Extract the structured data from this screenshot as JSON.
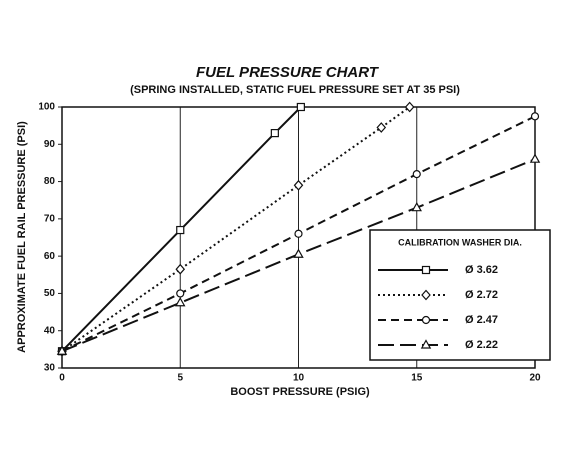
{
  "chart_data": {
    "type": "line",
    "title": "FUEL PRESSURE CHART",
    "subtitle": "(SPRING INSTALLED, STATIC FUEL PRESSURE SET AT 35 PSI)",
    "x_label": "BOOST PRESSURE (PSIG)",
    "y_label": "APPROXIMATE FUEL RAIL PRESSURE (PSI)",
    "legend_title": "CALIBRATION WASHER DIA.",
    "xlim": [
      0,
      20
    ],
    "xticks": [
      0,
      5,
      10,
      15,
      20
    ],
    "ylim": [
      30,
      100
    ],
    "yticks": [
      30,
      40,
      50,
      60,
      70,
      80,
      90,
      100
    ],
    "grid": true,
    "series": [
      {
        "name": "Ø 3.62",
        "color": "#111111",
        "dash": "solid",
        "marker": "square",
        "x": [
          0,
          5,
          9,
          10.1
        ],
        "values": [
          34.5,
          67,
          93,
          100
        ]
      },
      {
        "name": "Ø 2.72",
        "color": "#111111",
        "dash": "dotted",
        "marker": "diamond",
        "x": [
          0,
          5,
          10,
          13.5,
          14.7
        ],
        "values": [
          34.5,
          56.5,
          79,
          94.5,
          100
        ]
      },
      {
        "name": "Ø 2.47",
        "color": "#111111",
        "dash": "dashed",
        "marker": "circle",
        "x": [
          0,
          5,
          10,
          15,
          20
        ],
        "values": [
          34.5,
          50,
          66,
          82,
          97.5
        ]
      },
      {
        "name": "Ø 2.22",
        "color": "#111111",
        "dash": "longdash",
        "marker": "triangle",
        "x": [
          0,
          5,
          10,
          15,
          20
        ],
        "values": [
          34.5,
          47.5,
          60.5,
          73,
          86
        ]
      }
    ]
  }
}
